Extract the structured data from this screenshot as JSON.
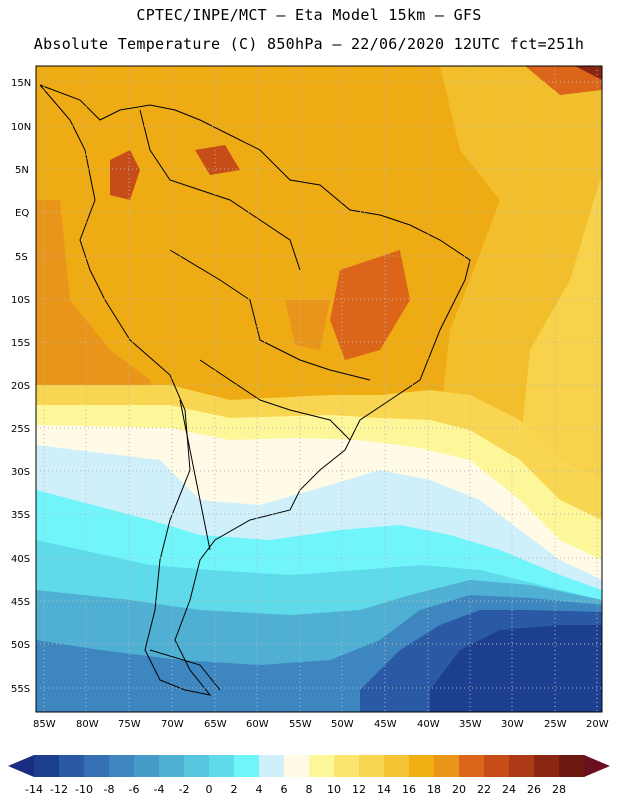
{
  "header": {
    "line1": "CPTEC/INPE/MCT –  Eta Model 15km – GFS",
    "line2": "Absolute Temperature (C) 850hPa – 22/06/2020 12UTC fct=251h"
  },
  "map": {
    "lat_labels": [
      "15N",
      "10N",
      "5N",
      "EQ",
      "5S",
      "10S",
      "15S",
      "20S",
      "25S",
      "30S",
      "35S",
      "40S",
      "45S",
      "50S",
      "55S"
    ],
    "lon_labels": [
      "85W",
      "80W",
      "75W",
      "70W",
      "65W",
      "60W",
      "55W",
      "50W",
      "45W",
      "40W",
      "35W",
      "30W",
      "25W",
      "20W"
    ]
  },
  "colorbar": {
    "labels": [
      "-14",
      "-12",
      "-10",
      "-8",
      "-6",
      "-4",
      "-2",
      "0",
      "2",
      "4",
      "6",
      "8",
      "10",
      "12",
      "14",
      "16",
      "18",
      "20",
      "22",
      "24",
      "26",
      "28"
    ],
    "colors": [
      "#1d3f8f",
      "#2a5aa6",
      "#3470b3",
      "#3e86bf",
      "#479bc8",
      "#4fb0d4",
      "#57c6df",
      "#5edaea",
      "#6ff5fa",
      "#cfeffa",
      "#fffbe6",
      "#fdf79a",
      "#fbe56f",
      "#f9d652",
      "#f4c233",
      "#f0ae13",
      "#e8951a",
      "#dc651a",
      "#c64c18",
      "#ac3a16",
      "#8a2612",
      "#6d1a10"
    ],
    "under_color": "#1a2d80",
    "over_color": "#6a0e22"
  }
}
